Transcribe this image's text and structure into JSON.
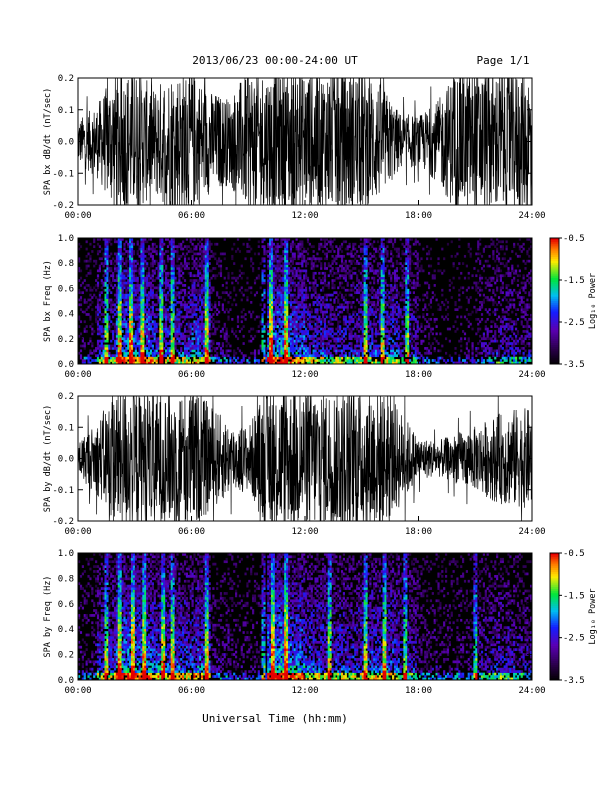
{
  "header": {
    "title": "2013/06/23  00:00-24:00 UT",
    "page_label": "Page 1/1"
  },
  "colors": {
    "trace": "#000000",
    "background": "#ffffff"
  },
  "chart_data": [
    {
      "type": "line",
      "ylabel": "SPA bx dB/dt (nT/sec)",
      "xlim": [
        "00:00",
        "24:00"
      ],
      "x_ticks": [
        "00:00",
        "06:00",
        "12:00",
        "18:00",
        "24:00"
      ],
      "ylim": [
        -0.2,
        0.2
      ],
      "y_ticks": [
        "-0.2",
        "-0.1",
        "0.0",
        "0.1",
        "0.2"
      ],
      "grid": false,
      "hourly_amplitude": [
        0.06,
        0.1,
        0.2,
        0.2,
        0.15,
        0.2,
        0.2,
        0.14,
        0.12,
        0.2,
        0.2,
        0.2,
        0.2,
        0.2,
        0.2,
        0.2,
        0.16,
        0.08,
        0.07,
        0.11,
        0.2,
        0.2,
        0.2,
        0.2
      ]
    },
    {
      "type": "heatmap",
      "ylabel": "SPA bx Freq (Hz)",
      "xlim": [
        "00:00",
        "24:00"
      ],
      "x_ticks": [
        "00:00",
        "06:00",
        "12:00",
        "18:00",
        "24:00"
      ],
      "ylim": [
        0.0,
        1.0
      ],
      "y_ticks": [
        "0.0",
        "0.2",
        "0.4",
        "0.6",
        "0.8",
        "1.0"
      ],
      "colorbar": {
        "label": "Log₁₀ Power",
        "range": [
          -3.5,
          -0.5
        ],
        "ticks": [
          "-0.5",
          "-1.5",
          "-2.5",
          "-3.5"
        ]
      },
      "hourly_activity": [
        0.25,
        0.55,
        0.8,
        0.75,
        0.65,
        0.6,
        0.7,
        0.3,
        0.2,
        0.2,
        0.85,
        0.75,
        0.6,
        0.55,
        0.55,
        0.6,
        0.6,
        0.5,
        0.25,
        0.15,
        0.2,
        0.35,
        0.45,
        0.4
      ],
      "burst_hours": [
        1.5,
        2.2,
        2.8,
        3.4,
        4.4,
        5.0,
        6.8,
        9.8,
        10.2,
        11.0,
        15.2,
        16.1,
        17.4
      ]
    },
    {
      "type": "line",
      "ylabel": "SPA by dB/dt (nT/sec)",
      "xlim": [
        "00:00",
        "24:00"
      ],
      "x_ticks": [
        "00:00",
        "06:00",
        "12:00",
        "18:00",
        "24:00"
      ],
      "ylim": [
        -0.2,
        0.2
      ],
      "y_ticks": [
        "-0.2",
        "-0.1",
        "0.0",
        "0.1",
        "0.2"
      ],
      "grid": false,
      "hourly_amplitude": [
        0.05,
        0.1,
        0.2,
        0.2,
        0.18,
        0.2,
        0.2,
        0.15,
        0.1,
        0.09,
        0.2,
        0.2,
        0.2,
        0.2,
        0.2,
        0.2,
        0.2,
        0.14,
        0.06,
        0.05,
        0.07,
        0.09,
        0.12,
        0.14
      ]
    },
    {
      "type": "heatmap",
      "ylabel": "SPA by Freq (Hz)",
      "xlim": [
        "00:00",
        "24:00"
      ],
      "x_ticks": [
        "00:00",
        "06:00",
        "12:00",
        "18:00",
        "24:00"
      ],
      "ylim": [
        0.0,
        1.0
      ],
      "y_ticks": [
        "0.0",
        "0.2",
        "0.4",
        "0.6",
        "0.8",
        "1.0"
      ],
      "colorbar": {
        "label": "Log₁₀ Power",
        "range": [
          -3.5,
          -0.5
        ],
        "ticks": [
          "-0.5",
          "-1.5",
          "-2.5",
          "-3.5"
        ]
      },
      "hourly_activity": [
        0.3,
        0.6,
        0.85,
        0.8,
        0.7,
        0.65,
        0.7,
        0.35,
        0.25,
        0.25,
        0.9,
        0.8,
        0.65,
        0.6,
        0.6,
        0.65,
        0.65,
        0.5,
        0.3,
        0.25,
        0.3,
        0.45,
        0.5,
        0.45
      ],
      "burst_hours": [
        1.5,
        2.2,
        2.9,
        3.5,
        4.5,
        5.0,
        6.8,
        9.8,
        10.3,
        11.0,
        13.3,
        15.2,
        16.2,
        17.3,
        21.0
      ]
    }
  ],
  "footer": {
    "xlabel": "Universal Time (hh:mm)"
  }
}
